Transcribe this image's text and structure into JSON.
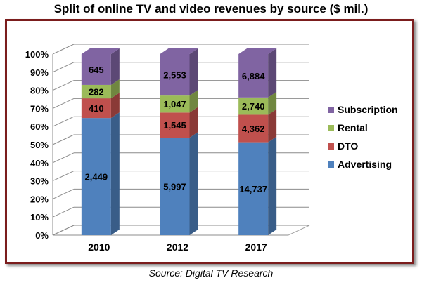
{
  "chart_data": {
    "type": "bar",
    "stacked": "100%",
    "style": "3d-column",
    "title": "Split of online TV and video revenues by source ($ mil.)",
    "source": "Source: Digital TV Research",
    "categories": [
      "2010",
      "2012",
      "2017"
    ],
    "y_ticks": [
      "0%",
      "10%",
      "20%",
      "30%",
      "40%",
      "50%",
      "60%",
      "70%",
      "80%",
      "90%",
      "100%"
    ],
    "ylim": [
      0,
      100
    ],
    "legend_position": "right",
    "series": [
      {
        "name": "Advertising",
        "color": "#4f81bd",
        "values": [
          2449,
          5997,
          14737
        ],
        "labels": [
          "2,449",
          "5,997",
          "14,737"
        ]
      },
      {
        "name": "DTO",
        "color": "#c0504d",
        "values": [
          410,
          1545,
          4362
        ],
        "labels": [
          "410",
          "1,545",
          "4,362"
        ]
      },
      {
        "name": "Rental",
        "color": "#9bbb59",
        "values": [
          282,
          1047,
          2740
        ],
        "labels": [
          "282",
          "1,047",
          "2,740"
        ]
      },
      {
        "name": "Subscription",
        "color": "#8064a2",
        "values": [
          645,
          2553,
          6884
        ],
        "labels": [
          "645",
          "2,553",
          "6,884"
        ]
      }
    ]
  }
}
